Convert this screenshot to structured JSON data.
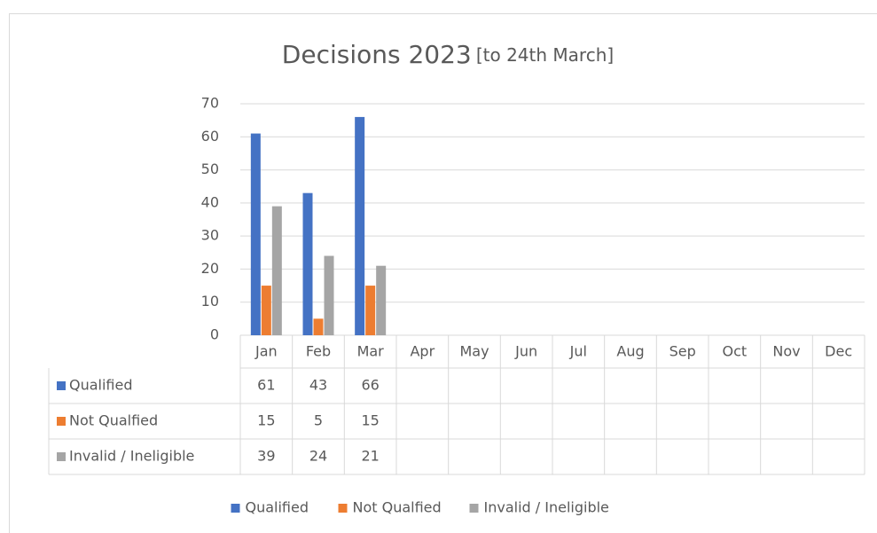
{
  "chart_data": {
    "type": "bar",
    "title": "Decisions 2023",
    "subtitle": "[to 24th March]",
    "categories": [
      "Jan",
      "Feb",
      "Mar",
      "Apr",
      "May",
      "Jun",
      "Jul",
      "Aug",
      "Sep",
      "Oct",
      "Nov",
      "Dec"
    ],
    "series": [
      {
        "name": "Qualified",
        "color": "#4472c4",
        "values": [
          61,
          43,
          66,
          null,
          null,
          null,
          null,
          null,
          null,
          null,
          null,
          null
        ]
      },
      {
        "name": "Not Qualfied",
        "color": "#ed7d31",
        "values": [
          15,
          5,
          15,
          null,
          null,
          null,
          null,
          null,
          null,
          null,
          null,
          null
        ]
      },
      {
        "name": "Invalid / Ineligible",
        "color": "#a5a5a5",
        "values": [
          39,
          24,
          21,
          null,
          null,
          null,
          null,
          null,
          null,
          null,
          null,
          null
        ]
      }
    ],
    "ylim": [
      0,
      70
    ],
    "yticks": [
      0,
      10,
      20,
      30,
      40,
      50,
      60,
      70
    ],
    "grid": true,
    "legend": "bottom"
  }
}
